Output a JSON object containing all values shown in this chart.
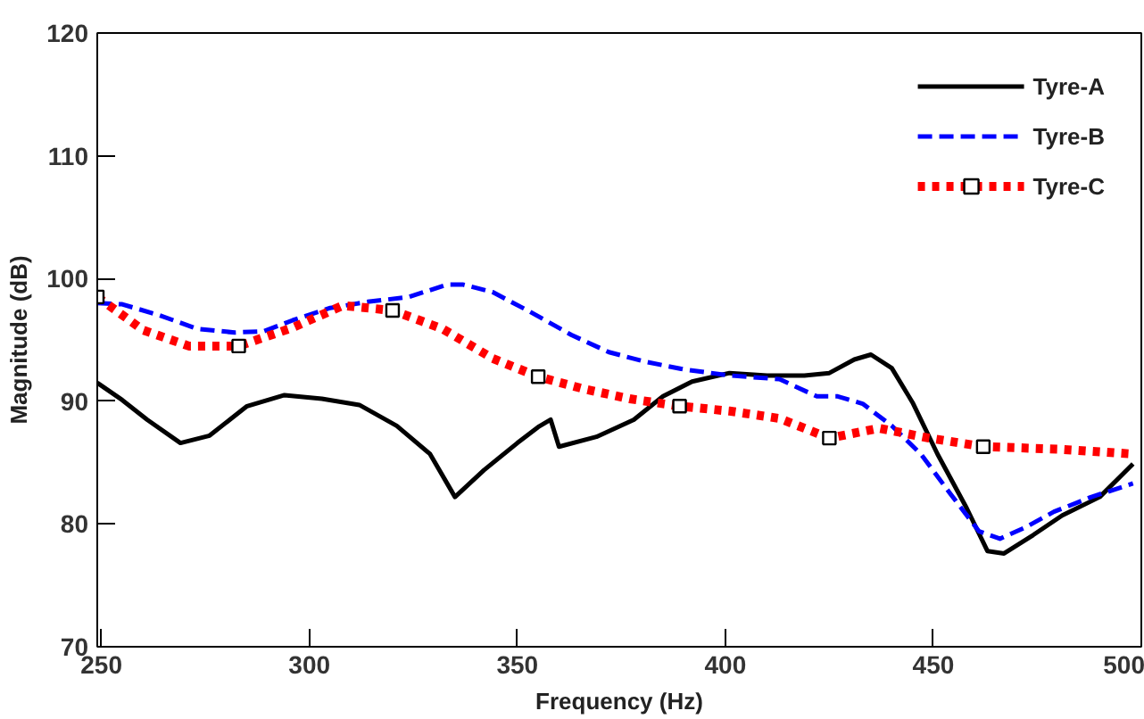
{
  "chart_data": {
    "type": "line",
    "xlabel": "Frequency (Hz)",
    "ylabel": "Magnitude (dB)",
    "xlim": [
      249,
      500
    ],
    "xticks": [
      250,
      300,
      350,
      400,
      450,
      500
    ],
    "ylim": [
      70,
      120
    ],
    "yticks": [
      70,
      80,
      90,
      100,
      110,
      120
    ],
    "grid": false,
    "legend": "top right",
    "series": [
      {
        "name": "Tyre-A",
        "color": "#000000",
        "line_style": "solid",
        "marker": "none",
        "x": [
          249,
          255,
          261,
          269,
          276,
          285,
          294,
          303,
          312,
          321,
          329,
          335,
          342,
          350,
          355,
          358,
          360,
          369,
          378,
          385,
          392,
          401,
          410,
          419,
          425,
          431,
          435,
          440,
          445,
          451,
          458,
          463,
          467,
          474,
          481,
          490,
          498
        ],
        "values": [
          91.5,
          90.1,
          88.5,
          86.6,
          87.2,
          89.6,
          90.5,
          90.2,
          89.7,
          88.0,
          85.7,
          82.2,
          84.4,
          86.6,
          87.9,
          88.5,
          86.3,
          87.1,
          88.5,
          90.4,
          91.6,
          92.3,
          92.1,
          92.1,
          92.3,
          93.4,
          93.8,
          92.7,
          89.9,
          85.7,
          81.3,
          77.8,
          77.6,
          79.1,
          80.7,
          82.2,
          84.9
        ]
      },
      {
        "name": "Tyre-B",
        "color": "#0000ff",
        "line_style": "dashed",
        "marker": "none",
        "x": [
          249,
          255,
          264,
          273,
          282,
          289,
          296,
          305,
          314,
          324,
          333,
          337,
          344,
          353,
          363,
          372,
          381,
          390,
          401,
          413,
          422,
          427,
          433,
          440,
          447,
          454,
          461,
          466,
          472,
          479,
          488,
          498
        ],
        "values": [
          98.0,
          97.9,
          97.0,
          95.9,
          95.6,
          95.7,
          96.6,
          97.6,
          98.1,
          98.5,
          99.5,
          99.5,
          98.9,
          97.3,
          95.4,
          94.0,
          93.2,
          92.6,
          92.1,
          91.8,
          90.4,
          90.4,
          89.8,
          88.0,
          85.7,
          82.5,
          79.4,
          78.8,
          79.7,
          81.0,
          82.2,
          83.3
        ]
      },
      {
        "name": "Tyre-C",
        "color": "#ff0000",
        "line_style": "dotted",
        "marker": "none",
        "x": [
          249,
          260,
          271,
          283,
          296,
          308,
          320,
          332,
          344,
          355,
          366,
          377,
          389,
          401,
          413,
          425,
          437,
          449,
          462,
          480,
          498
        ],
        "values": [
          98.5,
          95.8,
          94.5,
          94.5,
          96.0,
          97.8,
          97.4,
          95.9,
          93.5,
          92.0,
          91.0,
          90.2,
          89.6,
          89.2,
          88.6,
          87.0,
          87.8,
          87.0,
          86.3,
          86.1,
          85.7
        ]
      },
      {
        "type": "scatter",
        "color": "#000000",
        "marker": "square",
        "x": [
          249,
          283,
          320,
          355,
          389,
          425,
          462
        ],
        "values": [
          98.5,
          94.5,
          97.4,
          92.0,
          89.6,
          87.0,
          86.3
        ]
      }
    ]
  }
}
